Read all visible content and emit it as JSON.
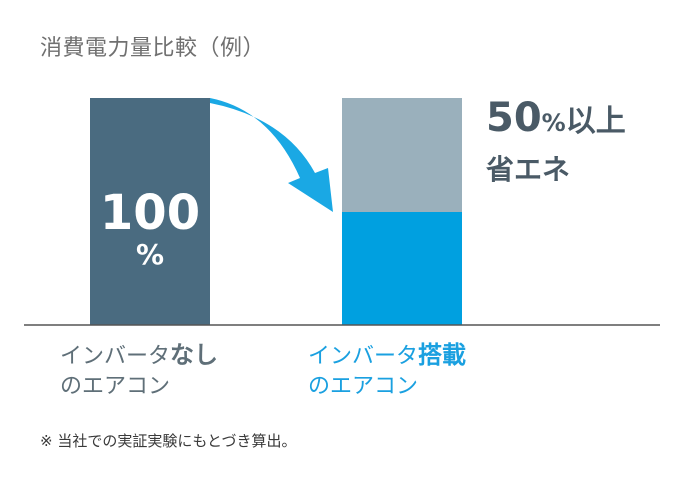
{
  "chart_data": {
    "type": "bar",
    "title": "消費電力量比較（例）",
    "ylim": [
      0,
      100
    ],
    "categories": [
      {
        "line1": "インバータ",
        "line1_bold": "なし",
        "line2": "のエアコン"
      },
      {
        "line1": "インバータ",
        "line1_bold": "搭載",
        "line2": "のエアコン"
      }
    ],
    "values": [
      100,
      50
    ],
    "data_labels": [
      {
        "number": "100",
        "unit": "%"
      }
    ],
    "colors": {
      "bar_without": "#4a6b80",
      "bar_with": "#00a0e0",
      "bar_saved": "#9ab0bc",
      "arrow": "#1aa8e4",
      "label_without": "#5f6f78",
      "label_with": "#1aa0e0"
    },
    "annotation": {
      "number": "50",
      "unit": "%",
      "suffix": "以上",
      "line2": "省エネ"
    },
    "footnote": "※ 当社での実証実験にもとづき算出。"
  }
}
